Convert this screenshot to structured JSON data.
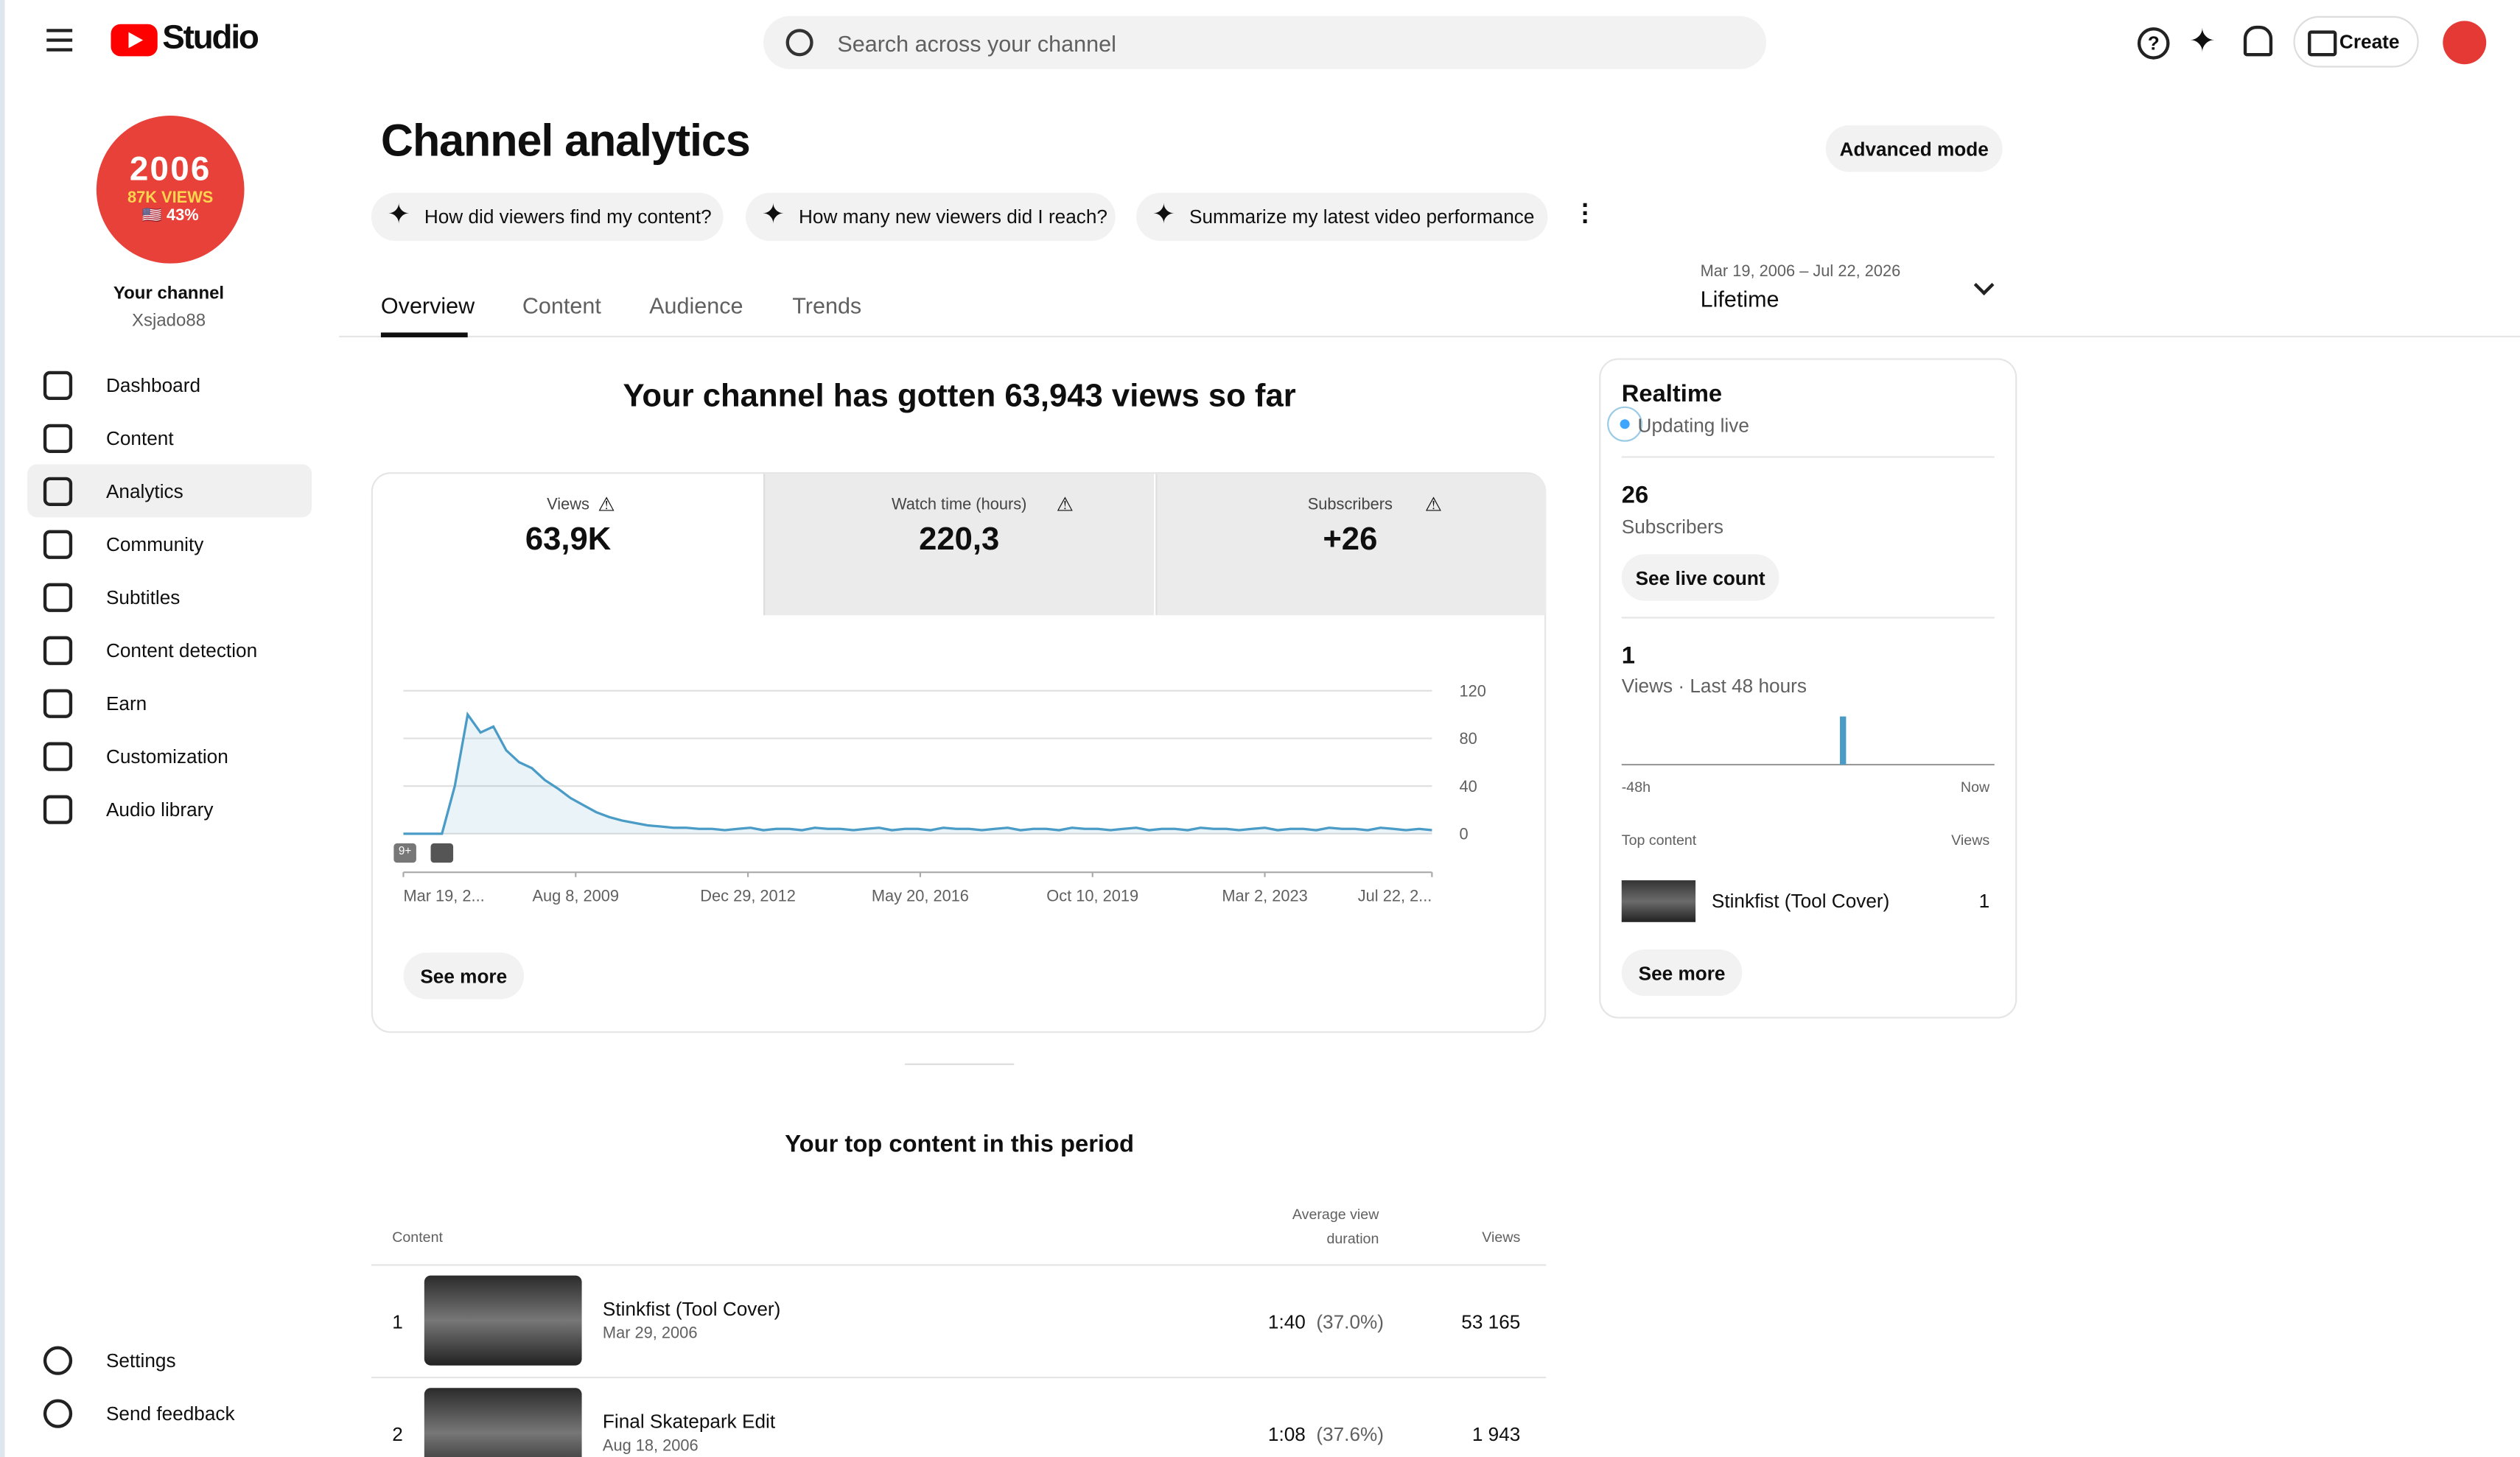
{
  "header": {
    "brand": "Studio",
    "search": "Search across your channel",
    "create": "Create"
  },
  "sidebar": {
    "avatar": {
      "year": "2006",
      "views": "87K VIEWS",
      "share": "🇺🇸 43%"
    },
    "label": "Your channel",
    "handle": "Xsjado88",
    "nav": [
      "Dashboard",
      "Content",
      "Analytics",
      "Community",
      "Subtitles",
      "Content detection",
      "Earn",
      "Customization",
      "Audio library"
    ],
    "bottom": [
      "Settings",
      "Send feedback"
    ]
  },
  "top": {
    "title": "Channel analytics",
    "advanced_mode": "Advanced mode",
    "prompts": [
      "How did viewers find my content?",
      "How many new viewers did I reach?",
      "Summarize my latest video performance"
    ],
    "tabs": [
      "Overview",
      "Content",
      "Audience",
      "Trends"
    ],
    "date_range": "Mar 19, 2006 – Jul 22, 2026",
    "period": "Lifetime"
  },
  "overview": {
    "headline": "Your channel has gotten 63,943 views so far",
    "metrics": [
      {
        "label": "Views",
        "value": "63,9K"
      },
      {
        "label": "Watch time (hours)",
        "value": "220,3"
      },
      {
        "label": "Subscribers",
        "value": "+26"
      }
    ],
    "see_more": "See more"
  },
  "chart_data": [
    {
      "type": "line",
      "color": "#4a9cc7",
      "xlim": [
        0,
        80
      ],
      "ylim": [
        0,
        120
      ],
      "yticks": [
        0,
        40,
        80,
        120
      ],
      "grid": true,
      "xticks": [
        {
          "value": 0,
          "label": "Mar 19, 2..."
        },
        {
          "value": 13.4,
          "label": "Aug 8, 2009"
        },
        {
          "value": 26.8,
          "label": "Dec 29, 2012"
        },
        {
          "value": 40.2,
          "label": "May 20, 2016"
        },
        {
          "value": 53.6,
          "label": "Oct 10, 2019"
        },
        {
          "value": 67,
          "label": "Mar 2, 2023"
        },
        {
          "value": 80,
          "label": "Jul 22, 2..."
        }
      ],
      "values": [
        0,
        0,
        0,
        0,
        40,
        100,
        85,
        90,
        70,
        60,
        55,
        45,
        38,
        30,
        24,
        18,
        14,
        11,
        9,
        7,
        6,
        5,
        5,
        4,
        4,
        3,
        4,
        5,
        3,
        4,
        4,
        3,
        5,
        4,
        4,
        3,
        4,
        5,
        3,
        4,
        4,
        3,
        5,
        4,
        4,
        3,
        4,
        5,
        3,
        4,
        4,
        3,
        5,
        4,
        4,
        3,
        4,
        5,
        3,
        4,
        4,
        3,
        5,
        4,
        4,
        3,
        4,
        5,
        3,
        4,
        4,
        3,
        5,
        4,
        4,
        3,
        5,
        4,
        3,
        4,
        3
      ]
    },
    {
      "type": "bar",
      "color": "#4a9cc7",
      "ylim": [
        0,
        1.5
      ],
      "values": [
        0,
        0,
        0,
        0,
        0,
        0,
        0,
        0,
        0,
        0,
        0,
        0,
        0,
        0,
        0,
        0,
        0,
        0,
        0,
        0,
        0,
        0,
        0,
        0,
        0,
        0,
        0,
        0,
        1,
        0,
        0,
        0,
        0,
        0,
        0,
        0,
        0,
        0,
        0,
        0,
        0,
        0,
        0,
        0,
        0,
        0,
        0,
        0
      ]
    }
  ],
  "realtime": {
    "title": "Realtime",
    "status": "Updating live",
    "subscribers": "26",
    "subscribers_label": "Subscribers",
    "see_live_count": "See live count",
    "views": "1",
    "views_label": "Views · Last 48 hours",
    "axis_start": "-48h",
    "axis_end": "Now",
    "top_content": "Top content",
    "views_col": "Views",
    "top_item": {
      "title": "Stinkfist (Tool Cover)",
      "views": "1"
    },
    "see_more": "See more"
  },
  "table": {
    "title": "Your top content in this period",
    "columns": [
      "Content",
      "Average view duration",
      "Views"
    ],
    "rows": [
      {
        "rank": "1",
        "title": "Stinkfist (Tool Cover)",
        "date": "Mar 29, 2006",
        "duration": "1:40",
        "percent": "(37.0%)",
        "views": "53 165"
      },
      {
        "rank": "2",
        "title": "Final Skatepark Edit",
        "date": "Aug 18, 2006",
        "duration": "1:08",
        "percent": "(37.6%)",
        "views": "1 943"
      }
    ]
  }
}
